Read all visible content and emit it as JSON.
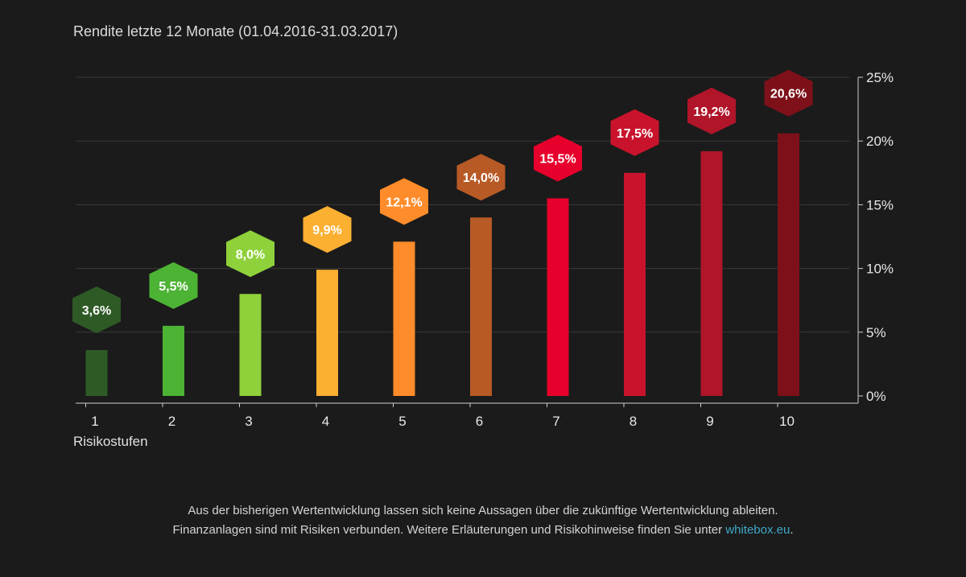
{
  "chart_data": {
    "type": "bar",
    "title": "Rendite letzte 12 Monate (01.04.2016-31.03.2017)",
    "xlabel": "Risikostufen",
    "ylabel": "",
    "categories": [
      "1",
      "2",
      "3",
      "4",
      "5",
      "6",
      "7",
      "8",
      "9",
      "10"
    ],
    "values": [
      3.6,
      5.5,
      8.0,
      9.9,
      12.1,
      14.0,
      15.5,
      17.5,
      19.2,
      20.6
    ],
    "value_labels": [
      "3,6%",
      "5,5%",
      "8,0%",
      "9,9%",
      "12,1%",
      "14,0%",
      "15,5%",
      "17,5%",
      "19,2%",
      "20,6%"
    ],
    "colors": [
      "#2e5a26",
      "#4db334",
      "#8fd13b",
      "#fbb032",
      "#ff8c2a",
      "#b85a26",
      "#e8002c",
      "#c9132c",
      "#b0152a",
      "#7d1019"
    ],
    "ylim": [
      0,
      25
    ],
    "yticks": [
      0,
      5,
      10,
      15,
      20,
      25
    ],
    "ytick_labels": [
      "0%",
      "5%",
      "10%",
      "15%",
      "20%",
      "25%"
    ],
    "y_axis_position": "right",
    "grid": true,
    "legend": "none"
  },
  "disclaimer": {
    "line1": "Aus der bisherigen Wertentwicklung lassen sich keine Aussagen über die zukünftige Wertentwicklung ableiten.",
    "line2": "Finanzanlagen sind mit Risiken verbunden. Weitere Erläuterungen und Risikohinweise finden Sie unter ",
    "link_text": "whitebox.eu",
    "line2_end": "."
  },
  "colors": {
    "background": "#1b1b1b",
    "gridline": "#3a3a3a",
    "axis": "#cfcfcf",
    "text": "#e8e8e8",
    "link": "#3fa7c9"
  }
}
